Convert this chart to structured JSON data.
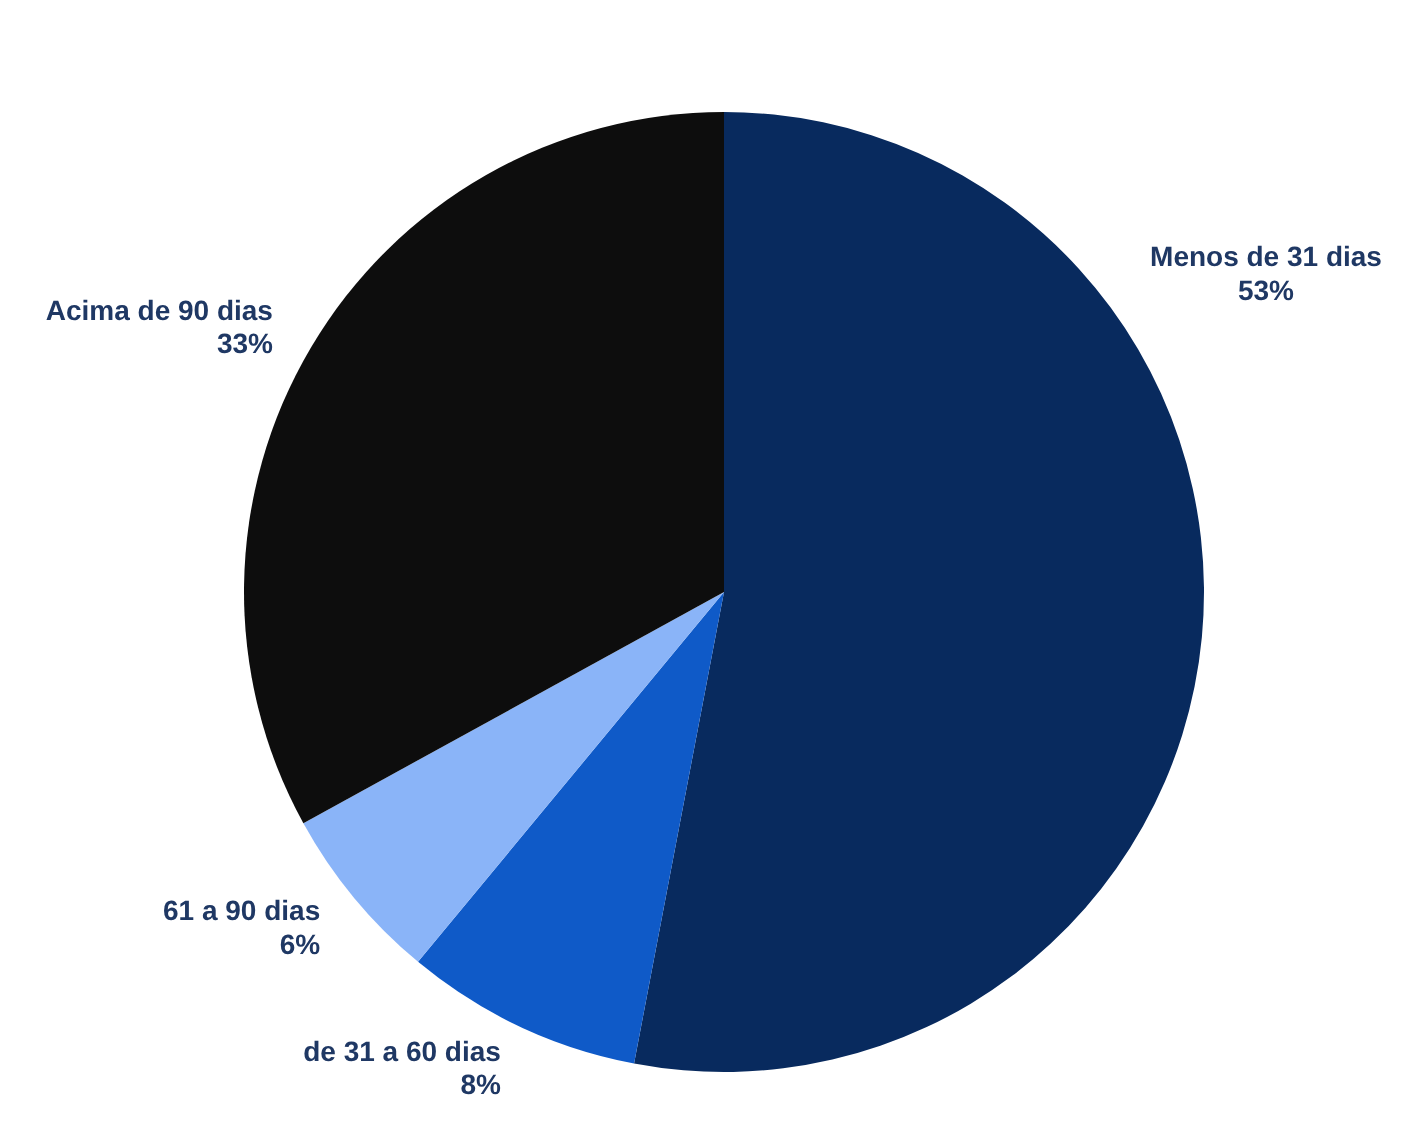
{
  "chart_data": {
    "type": "pie",
    "categories": [
      "Menos de 31 dias",
      "de 31 a 60 dias",
      "61 a 90 dias",
      "Acima de 90 dias"
    ],
    "values": [
      53,
      8,
      6,
      33
    ],
    "value_labels": [
      "53%",
      "8%",
      "6%",
      "33%"
    ],
    "colors": [
      "#082a5e",
      "#0f5ac8",
      "#8ab4f8",
      "#0d0d0d"
    ],
    "legend": false
  }
}
